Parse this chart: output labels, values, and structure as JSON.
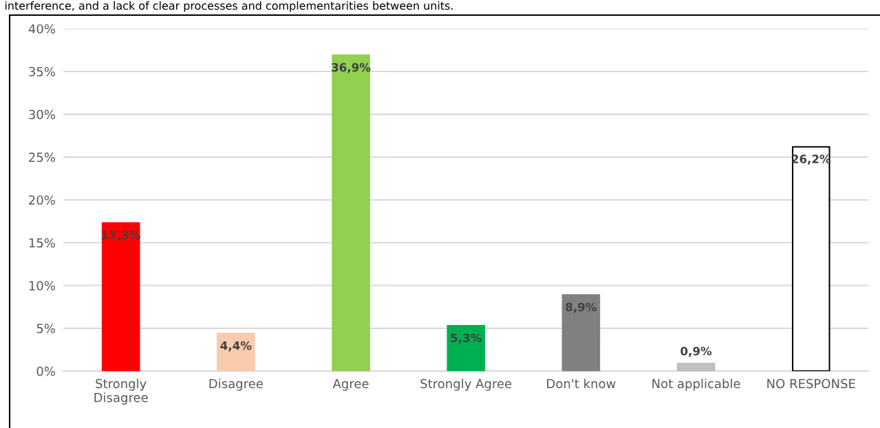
{
  "chart_data": {
    "type": "bar",
    "title": "interference, and a lack of clear processes and complementarities between units.",
    "categories": [
      "Strongly\nDisagree",
      "Disagree",
      "Agree",
      "Strongly Agree",
      "Don't know",
      "Not applicable",
      "NO RESPONSE"
    ],
    "values": [
      17.3,
      4.4,
      36.9,
      5.3,
      8.9,
      0.9,
      26.2
    ],
    "value_labels": [
      "17,3%",
      "4,4%",
      "36,9%",
      "5,3%",
      "8,9%",
      "0,9%",
      "26,2%"
    ],
    "colors": [
      "#ff0000",
      "#f8cbad",
      "#92d050",
      "#00b050",
      "#808080",
      "#bfbfbf",
      "#ffffff"
    ],
    "ylim": [
      0,
      40
    ],
    "yticks": [
      {
        "value": 0,
        "label": "0%"
      },
      {
        "value": 5,
        "label": "5%"
      },
      {
        "value": 10,
        "label": "10%"
      },
      {
        "value": 15,
        "label": "15%"
      },
      {
        "value": 20,
        "label": "20%"
      },
      {
        "value": 25,
        "label": "25%"
      },
      {
        "value": 30,
        "label": "30%"
      },
      {
        "value": 35,
        "label": "35%"
      },
      {
        "value": 40,
        "label": "40%"
      }
    ],
    "grid": "y",
    "legend": false
  }
}
